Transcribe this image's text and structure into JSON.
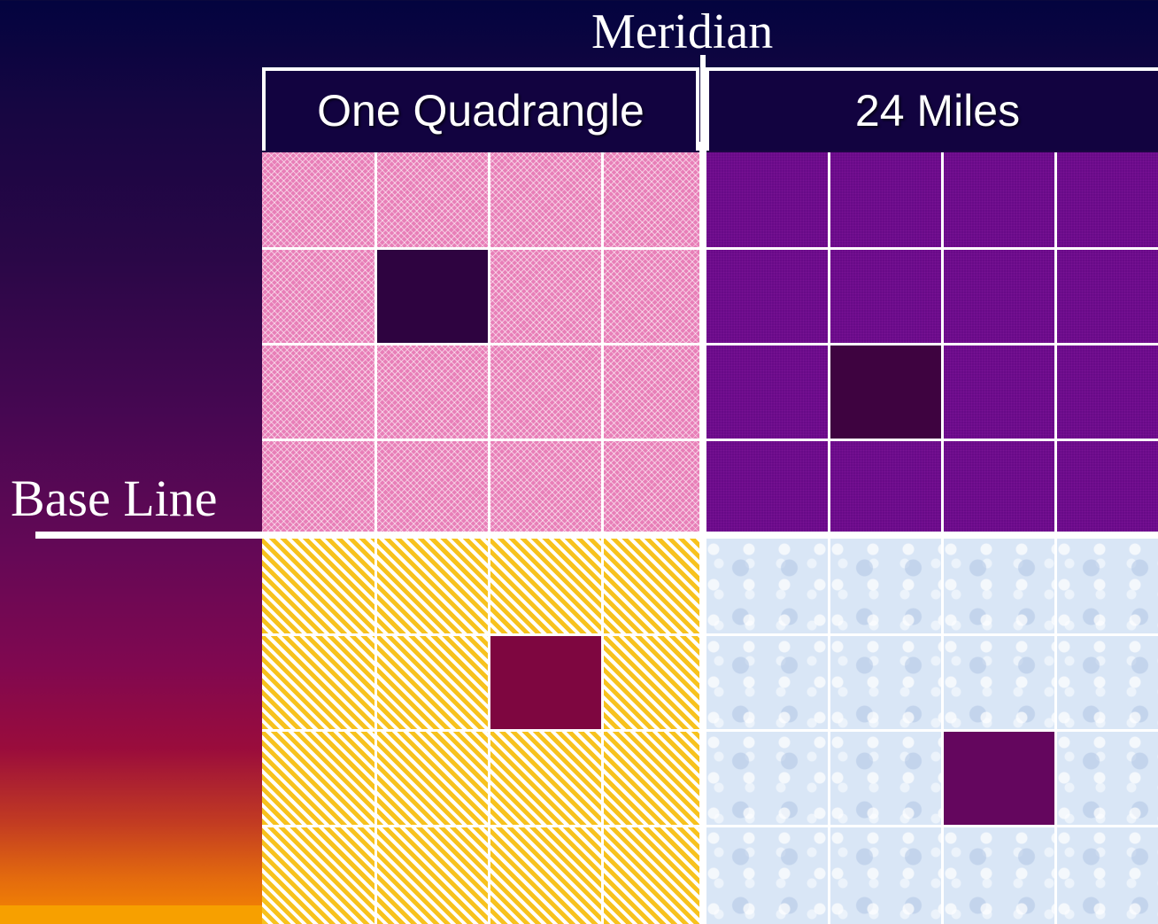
{
  "labels": {
    "meridian": "Meridian",
    "base_line": "Base Line",
    "one_quadrangle": "One Quadrangle",
    "distance": "24 Miles"
  },
  "colors": {
    "background_top": "#03043f",
    "background_bottom": "#f78a00",
    "header_fill": "#120340",
    "line": "#ffffff",
    "quadrant_nw": "#e87fb8",
    "quadrant_ne": "#680a88",
    "quadrant_sw": "#f7c21e",
    "quadrant_se": "#d9e6f6"
  },
  "quadrants": [
    {
      "name": "northwest",
      "pattern": "pink-crosshatch",
      "grid": [
        4,
        4
      ],
      "highlight": {
        "row": 2,
        "col": 2,
        "color": "#2e0340"
      }
    },
    {
      "name": "northeast",
      "pattern": "purple-dots",
      "grid": [
        4,
        4
      ],
      "highlight": {
        "row": 3,
        "col": 2,
        "color": "#3e0340"
      }
    },
    {
      "name": "southwest",
      "pattern": "yellow-stripes",
      "grid": [
        4,
        4
      ],
      "highlight": {
        "row": 2,
        "col": 3,
        "color": "#7e0640"
      }
    },
    {
      "name": "southeast",
      "pattern": "blue-texture",
      "grid": [
        4,
        4
      ],
      "highlight": {
        "row": 3,
        "col": 3,
        "color": "#64065e"
      }
    }
  ]
}
